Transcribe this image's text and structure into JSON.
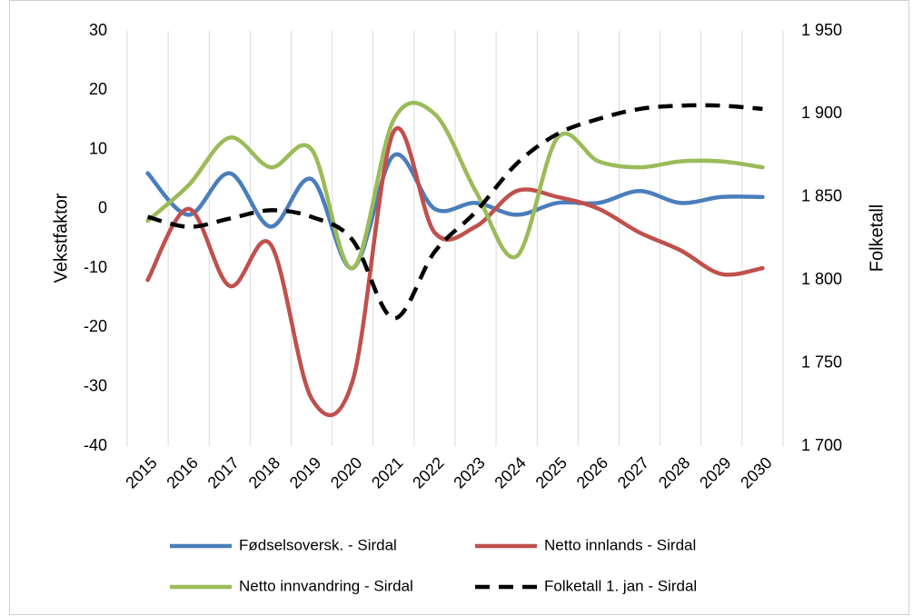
{
  "chart_data": {
    "type": "line",
    "categories": [
      "2015",
      "2016",
      "2017",
      "2018",
      "2019",
      "2020",
      "2021",
      "2022",
      "2023",
      "2024",
      "2025",
      "2026",
      "2027",
      "2028",
      "2029",
      "2030"
    ],
    "ylabel": "Vekstfaktor",
    "y2label": "Folketall",
    "ylim": [
      -40,
      30
    ],
    "yticks": [
      -40,
      -30,
      -20,
      -10,
      0,
      10,
      20,
      30
    ],
    "y2lim": [
      1700,
      1950
    ],
    "y2ticks": [
      {
        "value": 1700,
        "label": "1 700"
      },
      {
        "value": 1750,
        "label": "1 750"
      },
      {
        "value": 1800,
        "label": "1 800"
      },
      {
        "value": 1850,
        "label": "1 850"
      },
      {
        "value": 1900,
        "label": "1 900"
      },
      {
        "value": 1950,
        "label": "1 950"
      }
    ],
    "grid": "x",
    "smooth": true,
    "series": [
      {
        "name": "Fødselsoversk. - Sirdal",
        "color": "#4a7ebb",
        "values": [
          6,
          -1,
          6,
          -3,
          5,
          -10,
          9,
          0,
          1,
          -1,
          1,
          1,
          3,
          1,
          2,
          2
        ]
      },
      {
        "name": "Netto innlands - Sirdal",
        "color": "#c0504d",
        "values": [
          -12,
          0,
          -13,
          -6,
          -32,
          -29,
          13,
          -4,
          -3,
          3,
          2,
          0,
          -4,
          -7,
          -11,
          -10
        ]
      },
      {
        "name": "Netto innvandring - Sirdal",
        "color": "#9bbb59",
        "values": [
          -2,
          4,
          12,
          7,
          10,
          -10,
          15,
          16,
          3,
          -8,
          12,
          8,
          7,
          8,
          8,
          7
        ]
      },
      {
        "name": "Folketall 1. jan - Sirdal",
        "color": "#000000",
        "axis": "y2",
        "dashed": true,
        "values": [
          1838,
          1832,
          1837,
          1842,
          1838,
          1824,
          1777,
          1817,
          1841,
          1870,
          1888,
          1897,
          1903,
          1905,
          1905,
          1903
        ]
      }
    ]
  }
}
